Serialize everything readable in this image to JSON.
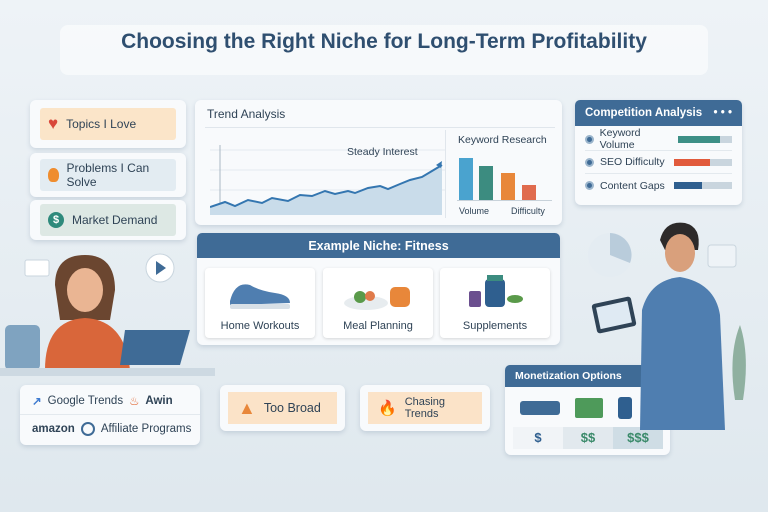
{
  "title": "Choosing the Right Niche for Long-Term Profitability",
  "criteria": [
    {
      "label": "Topics I Love",
      "icon": "heart-icon"
    },
    {
      "label": "Problems I Can Solve",
      "icon": "lightbulb-icon"
    },
    {
      "label": "Market Demand",
      "icon": "dollar-icon"
    }
  ],
  "trend": {
    "title": "Trend Analysis",
    "annotation": "Steady Interest"
  },
  "keyword": {
    "title": "Keyword Research",
    "labels": [
      "Volume",
      "Difficulty"
    ],
    "colors": [
      "#4aa3cf",
      "#3c8c80",
      "#e8873a",
      "#e06b4e"
    ]
  },
  "competition": {
    "title": "Competition Analysis",
    "rows": [
      {
        "label": "Keyword Volume",
        "fill": 0.78,
        "color": "#3d8f86"
      },
      {
        "label": "SEO Difficulty",
        "fill": 0.62,
        "color": "#e15a3c"
      },
      {
        "label": "Content Gaps",
        "fill": 0.48,
        "color": "#2f5f8f"
      }
    ]
  },
  "niche": {
    "title": "Example Niche: Fitness",
    "items": [
      "Home Workouts",
      "Meal Planning",
      "Supplements"
    ]
  },
  "tools": {
    "items": [
      "Google Trends",
      "Awin",
      "amazon",
      "Affiliate Programs"
    ]
  },
  "pitfalls": [
    {
      "label": "Too Broad",
      "icon": "warning-icon"
    },
    {
      "label": "Chasing Trends",
      "icon": "fire-icon"
    }
  ],
  "monetization": {
    "title": "Monetization Options",
    "tiers": [
      "$",
      "$$",
      "$$$"
    ],
    "dollar_icon": "$"
  }
}
